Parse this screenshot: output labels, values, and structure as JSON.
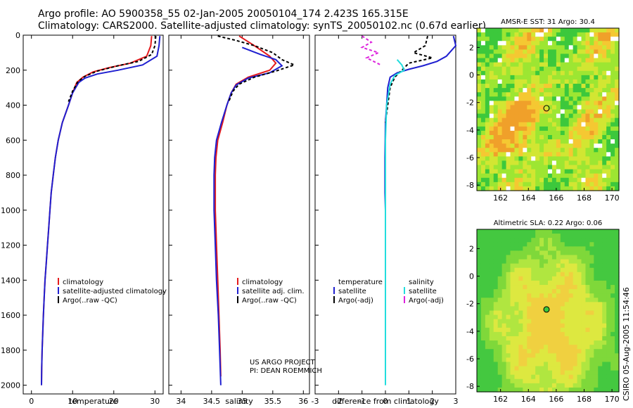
{
  "header": {
    "line1": "Argo profile: AO 5900358_55 02-Jan-2005 20050104_174 2.423S 165.315E",
    "line2": "Climatology: CARS2000. Satellite-adjusted climatology: synTS_20050102.nc (0.67d earlier)"
  },
  "side_label": "CSIRO 05-Aug-2005 11:54:46",
  "project": {
    "line1": "US ARGO PROJECT",
    "line2": "PI: DEAN ROEMMICH"
  },
  "colors": {
    "climatology": "#e41a1c",
    "satellite": "#1f1fd0",
    "argo": "#000000",
    "cyan": "#22dddd",
    "magenta": "#dd22dd"
  },
  "chart_data": [
    {
      "type": "line",
      "id": "temperature",
      "xlabel": "temperature",
      "ylabel": "",
      "xlim": [
        -2,
        32
      ],
      "ylim": [
        2050,
        0
      ],
      "xticks": [
        0,
        10,
        20,
        30
      ],
      "yticks": [
        0,
        200,
        400,
        600,
        800,
        1000,
        1200,
        1400,
        1600,
        1800,
        2000
      ],
      "legend": [
        "climatology",
        "satellite-adjusted climatology",
        "Argo(..raw -QC)"
      ],
      "series": [
        {
          "name": "climatology",
          "color": "#e41a1c",
          "dash": "",
          "points": [
            [
              29.2,
              5
            ],
            [
              29.0,
              60
            ],
            [
              28.0,
              120
            ],
            [
              24,
              160
            ],
            [
              19,
              185
            ],
            [
              15,
              210
            ],
            [
              12.5,
              240
            ],
            [
              11,
              270
            ],
            [
              10,
              330
            ],
            [
              9,
              400
            ],
            [
              7.5,
              500
            ],
            [
              6.5,
              600
            ],
            [
              5.8,
              700
            ],
            [
              5.3,
              800
            ],
            [
              4.8,
              900
            ],
            [
              4.5,
              1000
            ],
            [
              4.2,
              1100
            ],
            [
              3.9,
              1200
            ],
            [
              3.6,
              1300
            ],
            [
              3.3,
              1400
            ],
            [
              3.1,
              1500
            ],
            [
              2.9,
              1600
            ],
            [
              2.75,
              1700
            ],
            [
              2.6,
              1800
            ],
            [
              2.5,
              1900
            ],
            [
              2.45,
              2000
            ]
          ]
        },
        {
          "name": "satellite-adjusted climatology",
          "color": "#1f1fd0",
          "dash": "",
          "points": [
            [
              31.2,
              5
            ],
            [
              31.0,
              60
            ],
            [
              30.5,
              120
            ],
            [
              27,
              170
            ],
            [
              21,
              200
            ],
            [
              16,
              222
            ],
            [
              13,
              245
            ],
            [
              11.5,
              270
            ],
            [
              10,
              330
            ],
            [
              9,
              400
            ],
            [
              7.5,
              500
            ],
            [
              6.5,
              600
            ],
            [
              5.8,
              700
            ],
            [
              5.3,
              800
            ],
            [
              4.8,
              900
            ],
            [
              4.5,
              1000
            ],
            [
              4.2,
              1100
            ],
            [
              3.9,
              1200
            ],
            [
              3.6,
              1300
            ],
            [
              3.3,
              1400
            ],
            [
              3.1,
              1500
            ],
            [
              2.9,
              1600
            ],
            [
              2.75,
              1700
            ],
            [
              2.6,
              1800
            ],
            [
              2.5,
              1900
            ],
            [
              2.45,
              2000
            ]
          ]
        },
        {
          "name": "Argo(..raw -QC)",
          "color": "#000000",
          "dash": "4,3",
          "points": [
            [
              30.2,
              5
            ],
            [
              30.0,
              60
            ],
            [
              29.2,
              110
            ],
            [
              26,
              150
            ],
            [
              21,
              175
            ],
            [
              16,
              205
            ],
            [
              13,
              235
            ],
            [
              11.3,
              265
            ],
            [
              10,
              320
            ],
            [
              9,
              380
            ]
          ]
        }
      ]
    },
    {
      "type": "line",
      "id": "salinity",
      "xlabel": "salinity",
      "xlim": [
        33.8,
        36.1
      ],
      "ylim": [
        2050,
        0
      ],
      "xticks": [
        34,
        34.5,
        35,
        35.5,
        36
      ],
      "yticks": [
        0,
        200,
        400,
        600,
        800,
        1000,
        1200,
        1400,
        1600,
        1800,
        2000
      ],
      "legend": [
        "climatology",
        "satellite adj. clim.",
        "Argo(..raw -QC)"
      ],
      "series": [
        {
          "name": "climatology",
          "color": "#e41a1c",
          "dash": "",
          "points": [
            [
              34.95,
              5
            ],
            [
              35.2,
              60
            ],
            [
              35.45,
              120
            ],
            [
              35.55,
              160
            ],
            [
              35.45,
              200
            ],
            [
              35.1,
              240
            ],
            [
              34.9,
              280
            ],
            [
              34.82,
              330
            ],
            [
              34.75,
              400
            ],
            [
              34.68,
              500
            ],
            [
              34.6,
              600
            ],
            [
              34.57,
              700
            ],
            [
              34.56,
              800
            ],
            [
              34.56,
              1000
            ],
            [
              34.58,
              1200
            ],
            [
              34.6,
              1400
            ],
            [
              34.62,
              1600
            ],
            [
              34.64,
              1800
            ],
            [
              34.65,
              1950
            ]
          ]
        },
        {
          "name": "satellite adj. clim.",
          "color": "#1f1fd0",
          "dash": "",
          "points": [
            [
              35.0,
              70
            ],
            [
              35.3,
              110
            ],
            [
              35.55,
              140
            ],
            [
              35.65,
              175
            ],
            [
              35.45,
              215
            ],
            [
              35.1,
              245
            ],
            [
              34.9,
              285
            ],
            [
              34.82,
              330
            ],
            [
              34.75,
              400
            ],
            [
              34.66,
              500
            ],
            [
              34.58,
              600
            ],
            [
              34.55,
              700
            ],
            [
              34.54,
              800
            ],
            [
              34.54,
              1000
            ],
            [
              34.56,
              1200
            ],
            [
              34.58,
              1400
            ],
            [
              34.61,
              1600
            ],
            [
              34.63,
              1800
            ],
            [
              34.65,
              2000
            ]
          ]
        },
        {
          "name": "Argo(..raw -QC)",
          "color": "#000000",
          "dash": "4,3",
          "points": [
            [
              34.6,
              5
            ],
            [
              34.9,
              30
            ],
            [
              35.2,
              60
            ],
            [
              35.5,
              100
            ],
            [
              35.65,
              140
            ],
            [
              35.85,
              170
            ],
            [
              35.55,
              205
            ],
            [
              35.2,
              240
            ],
            [
              34.95,
              280
            ],
            [
              34.85,
              320
            ],
            [
              34.78,
              380
            ]
          ]
        }
      ]
    },
    {
      "type": "line",
      "id": "difference",
      "xlabel": "difference from climatology",
      "xlim": [
        -3,
        3
      ],
      "ylim": [
        2050,
        0
      ],
      "xticks": [
        -3,
        -2,
        -1,
        0,
        1,
        2,
        3
      ],
      "yticks": [
        0,
        200,
        400,
        600,
        800,
        1000,
        1200,
        1400,
        1600,
        1800,
        2000
      ],
      "legend_left": [
        "temperature",
        "satellite",
        "Argo(-adj)"
      ],
      "legend_right": [
        "salinity",
        "satellite",
        "Argo(-adj)"
      ],
      "series": [
        {
          "name": "temperature satellite",
          "color": "#1f1fd0",
          "dash": "",
          "points": [
            [
              2.9,
              5
            ],
            [
              3.0,
              60
            ],
            [
              2.6,
              120
            ],
            [
              2.2,
              150
            ],
            [
              1.6,
              175
            ],
            [
              1.0,
              195
            ],
            [
              0.5,
              215
            ],
            [
              0.2,
              240
            ],
            [
              0.1,
              300
            ],
            [
              0.05,
              400
            ],
            [
              0.0,
              500
            ],
            [
              -0.02,
              700
            ],
            [
              -0.02,
              900
            ],
            [
              0.0,
              1000
            ]
          ]
        },
        {
          "name": "temperature Argo(-adj)",
          "color": "#000000",
          "dash": "4,3",
          "points": [
            [
              1.8,
              5
            ],
            [
              1.7,
              60
            ],
            [
              1.2,
              100
            ],
            [
              2.0,
              130
            ],
            [
              1.0,
              160
            ],
            [
              0.7,
              200
            ],
            [
              0.4,
              240
            ],
            [
              0.2,
              300
            ],
            [
              0.1,
              400
            ],
            [
              0.0,
              500
            ]
          ]
        },
        {
          "name": "salinity satellite",
          "color": "#22dddd",
          "dash": "",
          "points": [
            [
              0.5,
              140
            ],
            [
              0.7,
              170
            ],
            [
              0.8,
              200
            ],
            [
              0.4,
              230
            ],
            [
              0.2,
              280
            ],
            [
              0.05,
              400
            ],
            [
              0.0,
              600
            ],
            [
              0.0,
              1000
            ],
            [
              0.0,
              1400
            ],
            [
              0.0,
              1800
            ],
            [
              0.0,
              2000
            ]
          ]
        },
        {
          "name": "salinity Argo(-adj)",
          "color": "#dd22dd",
          "dash": "4,3",
          "points": [
            [
              -1.0,
              5
            ],
            [
              -0.6,
              40
            ],
            [
              -1.0,
              70
            ],
            [
              -0.3,
              100
            ],
            [
              -0.8,
              130
            ],
            [
              -0.2,
              170
            ]
          ]
        }
      ]
    },
    {
      "type": "heatmap",
      "id": "sst-map",
      "title": "AMSR-E SST: 31 Argo: 30.4",
      "xlim": [
        160.3,
        170.5
      ],
      "ylim": [
        -8.4,
        3.4
      ],
      "xticks": [
        162,
        164,
        166,
        168,
        170
      ],
      "yticks": [
        2,
        0,
        -2,
        -4,
        -6,
        -8
      ],
      "marker": [
        165.3,
        -2.42
      ]
    },
    {
      "type": "heatmap",
      "id": "sla-map",
      "title": "Altimetric SLA: 0.22 Argo: 0.06",
      "xlim": [
        160.3,
        170.5
      ],
      "ylim": [
        -8.4,
        3.4
      ],
      "xticks": [
        162,
        164,
        166,
        168,
        170
      ],
      "yticks": [
        2,
        0,
        -2,
        -4,
        -6,
        -8
      ],
      "marker": [
        165.3,
        -2.42
      ]
    }
  ]
}
